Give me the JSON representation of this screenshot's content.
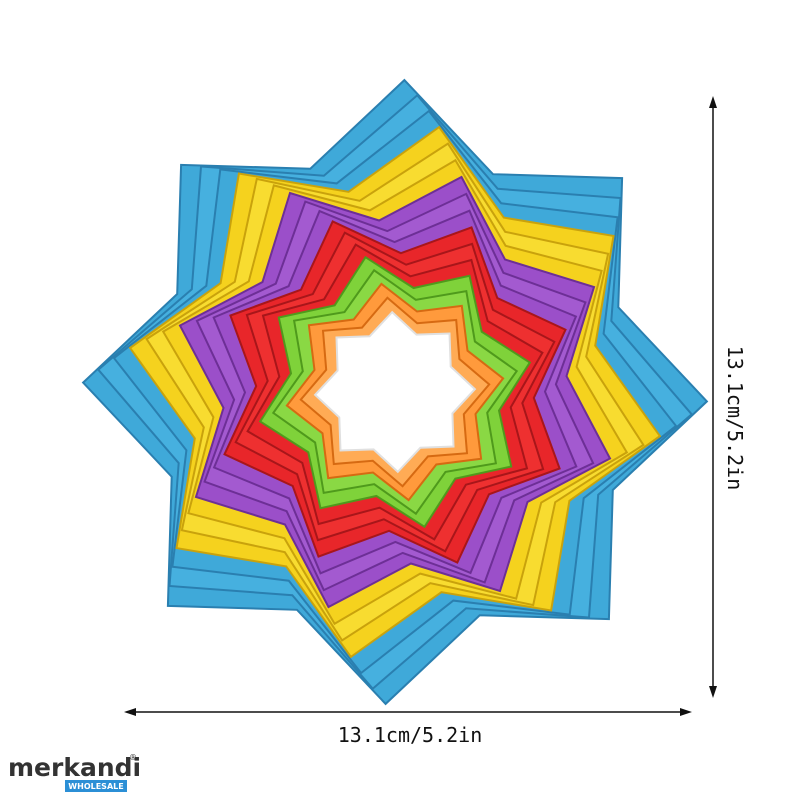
{
  "dimensions": {
    "width_label": "13.1cm/5.2in",
    "height_label": "13.1cm/5.2in"
  },
  "logo": {
    "name": "merkandi",
    "mark": "®",
    "tagline": "WHOLESALE"
  }
}
